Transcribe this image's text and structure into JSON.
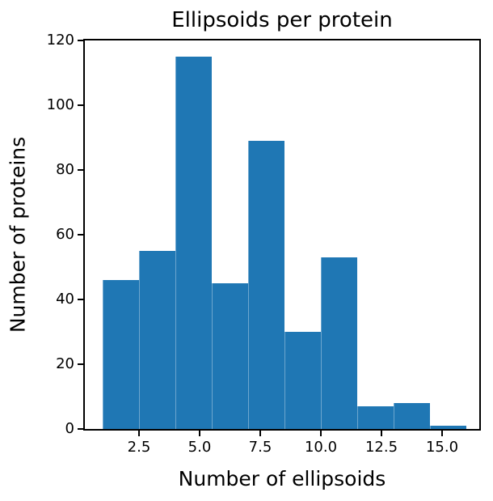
{
  "chart_data": {
    "type": "bar",
    "subtype": "histogram",
    "title": "Ellipsoids per protein",
    "xlabel": "Number of ellipsoids",
    "ylabel": "Number of proteins",
    "bin_edges": [
      1.0,
      2.5,
      4.0,
      5.5,
      7.0,
      8.5,
      10.0,
      11.5,
      13.0,
      14.5,
      16.0
    ],
    "counts": [
      46,
      55,
      115,
      45,
      89,
      30,
      53,
      7,
      8,
      1
    ],
    "x_ticks": [
      2.5,
      5.0,
      7.5,
      10.0,
      12.5,
      15.0
    ],
    "x_tick_labels": [
      "2.5",
      "5.0",
      "7.5",
      "10.0",
      "12.5",
      "15.0"
    ],
    "y_ticks": [
      0,
      20,
      40,
      60,
      80,
      100,
      120
    ],
    "y_tick_labels": [
      "0",
      "20",
      "40",
      "60",
      "80",
      "100",
      "120"
    ],
    "xlim": [
      0.267,
      16.533
    ],
    "ylim": [
      0,
      120
    ],
    "bar_color": "#1f77b4",
    "spine_color": "#000000",
    "text_color": "#000000",
    "background": "#ffffff",
    "grid": false,
    "legend": null
  }
}
